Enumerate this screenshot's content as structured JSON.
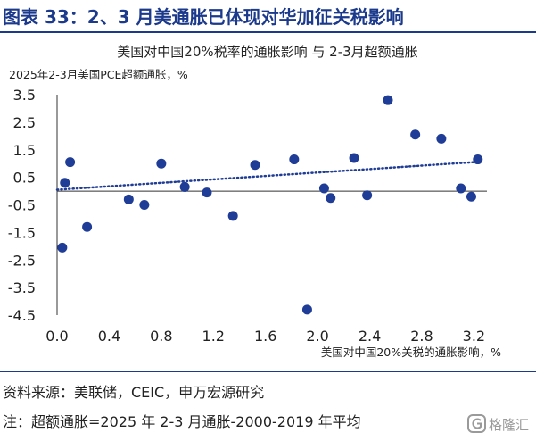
{
  "header": {
    "title": "图表 33：2、3 月美通胀已体现对华加征关税影响"
  },
  "footer": {
    "source": "资料来源：美联储，CEIC，申万宏源研究",
    "note": "注：超额通胀=2025 年 2-3 月通胀-2000-2019 年平均"
  },
  "watermark": {
    "text": "格隆汇"
  },
  "colors": {
    "accent": "#1b3a8c",
    "marker": "#1f3c96",
    "trend": "#1f3c96"
  },
  "chart_data": {
    "type": "scatter",
    "title": "美国对中国20%税率的通胀影响 与 2-3月超额通胀",
    "ylabel": "2025年2-3月美国PCE超额通胀，%",
    "xlabel": "美国对中国20%关税的通胀影响，%",
    "xlim": [
      0.0,
      3.3
    ],
    "ylim": [
      -4.5,
      3.5
    ],
    "xticks": [
      0.0,
      0.4,
      0.8,
      1.2,
      1.6,
      2.0,
      2.4,
      2.8,
      3.2
    ],
    "xtick_labels": [
      "0.0",
      "0.4",
      "0.8",
      "1.2",
      "1.6",
      "2.0",
      "2.4",
      "2.8",
      "3.2"
    ],
    "yticks": [
      3.5,
      2.5,
      1.5,
      0.5,
      -0.5,
      -1.5,
      -2.5,
      -3.5,
      -4.5
    ],
    "ytick_labels": [
      "3.5",
      "2.5",
      "1.5",
      "0.5",
      "-0.5",
      "-1.5",
      "-2.5",
      "-3.5",
      "-4.5"
    ],
    "grid": false,
    "trendline": {
      "style": "dotted",
      "x": [
        0.0,
        3.2
      ],
      "y": [
        0.05,
        1.05
      ]
    },
    "points": [
      {
        "x": 0.04,
        "y": -2.05
      },
      {
        "x": 0.06,
        "y": 0.3
      },
      {
        "x": 0.1,
        "y": 1.05
      },
      {
        "x": 0.23,
        "y": -1.3
      },
      {
        "x": 0.55,
        "y": -0.3
      },
      {
        "x": 0.67,
        "y": -0.5
      },
      {
        "x": 0.8,
        "y": 1.0
      },
      {
        "x": 0.98,
        "y": 0.15
      },
      {
        "x": 1.15,
        "y": -0.05
      },
      {
        "x": 1.35,
        "y": -0.9
      },
      {
        "x": 1.52,
        "y": 0.95
      },
      {
        "x": 1.82,
        "y": 1.15
      },
      {
        "x": 1.92,
        "y": -4.3
      },
      {
        "x": 2.05,
        "y": 0.1
      },
      {
        "x": 2.1,
        "y": -0.25
      },
      {
        "x": 2.28,
        "y": 1.2
      },
      {
        "x": 2.38,
        "y": -0.15
      },
      {
        "x": 2.54,
        "y": 3.3
      },
      {
        "x": 2.75,
        "y": 2.05
      },
      {
        "x": 2.95,
        "y": 1.9
      },
      {
        "x": 3.1,
        "y": 0.1
      },
      {
        "x": 3.18,
        "y": -0.2
      },
      {
        "x": 3.23,
        "y": 1.15
      }
    ]
  }
}
